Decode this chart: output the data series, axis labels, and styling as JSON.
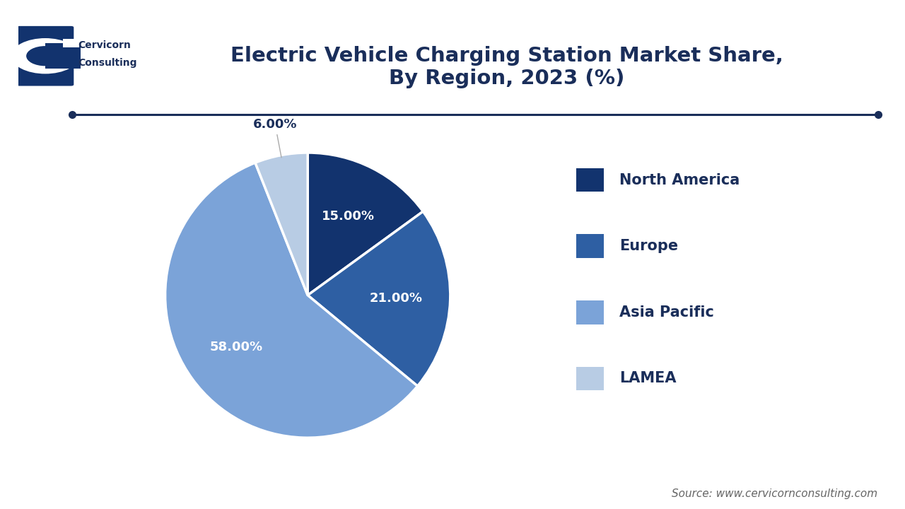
{
  "title": "Electric Vehicle Charging Station Market Share,\nBy Region, 2023 (%)",
  "title_color": "#1a2e5a",
  "title_fontsize": 21,
  "title_fontweight": "bold",
  "slices": [
    15.0,
    21.0,
    58.0,
    6.0
  ],
  "labels": [
    "North America",
    "Europe",
    "Asia Pacific",
    "LAMEA"
  ],
  "colors": [
    "#12336e",
    "#2e5fa3",
    "#7ba3d8",
    "#b8cce4"
  ],
  "autopct_labels": [
    "15.00%",
    "21.00%",
    "58.00%",
    "6.00%"
  ],
  "legend_labels": [
    "North America",
    "Europe",
    "Asia Pacific",
    "LAMEA"
  ],
  "source_text": "Source: www.cervicornconsulting.com",
  "source_fontsize": 11,
  "source_color": "#666666",
  "background_color": "#ffffff",
  "separator_line_color": "#1a2e5a",
  "logo_text_line1": "Cervicorn",
  "logo_text_line2": "Consulting",
  "startangle": 90
}
